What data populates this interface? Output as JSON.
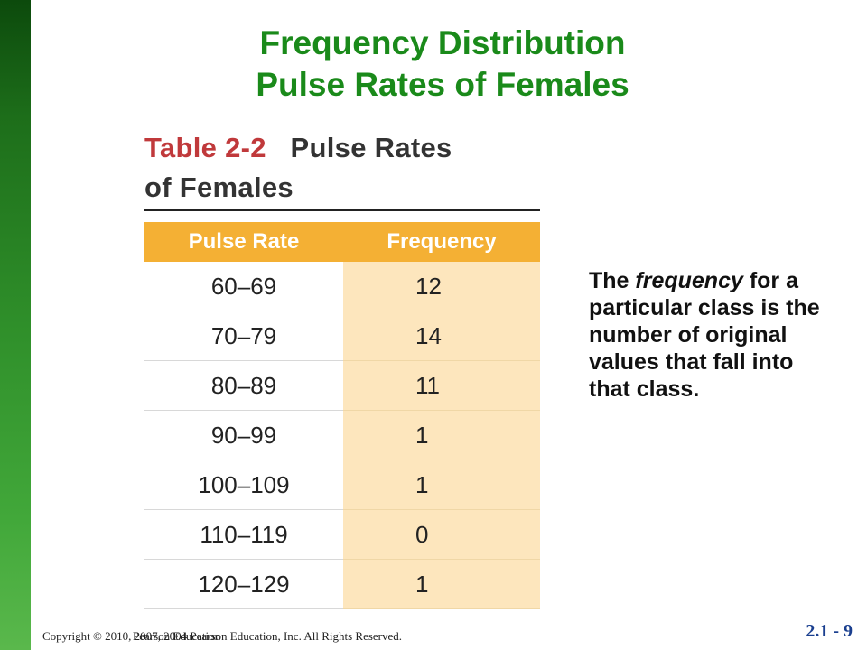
{
  "slide": {
    "title_line1": "Frequency Distribution",
    "title_line2": "Pulse Rates of Females"
  },
  "table": {
    "caption_label": "Table 2-2",
    "caption_text_line1": "Pulse Rates",
    "caption_text_line2": "of Females",
    "headers": [
      "Pulse Rate",
      "Frequency"
    ],
    "rows": [
      {
        "pulse_rate": "60–69",
        "frequency": "12"
      },
      {
        "pulse_rate": "70–79",
        "frequency": "14"
      },
      {
        "pulse_rate": "80–89",
        "frequency": "11"
      },
      {
        "pulse_rate": "90–99",
        "frequency": "1"
      },
      {
        "pulse_rate": "100–109",
        "frequency": "1"
      },
      {
        "pulse_rate": "110–119",
        "frequency": "0"
      },
      {
        "pulse_rate": "120–129",
        "frequency": "1"
      }
    ]
  },
  "definition": {
    "prefix": "The ",
    "term": "frequency",
    "suffix": " for a particular class is the number of original values that fall into that class."
  },
  "footer": {
    "copyright": "Copyright © 2010, 2007, 2004 Pearson Education, Inc. All Rights Reserved.",
    "copyright_overlay": "Pearson Education",
    "slide_number": "2.1 - 9"
  },
  "colors": {
    "title": "#1a8a1a",
    "table_label": "#c0393b",
    "header_bg": "#f4b034",
    "frequency_bg": "#fde6bd",
    "slide_number": "#1a3f8f",
    "side_bar": "#2f8f2a"
  }
}
